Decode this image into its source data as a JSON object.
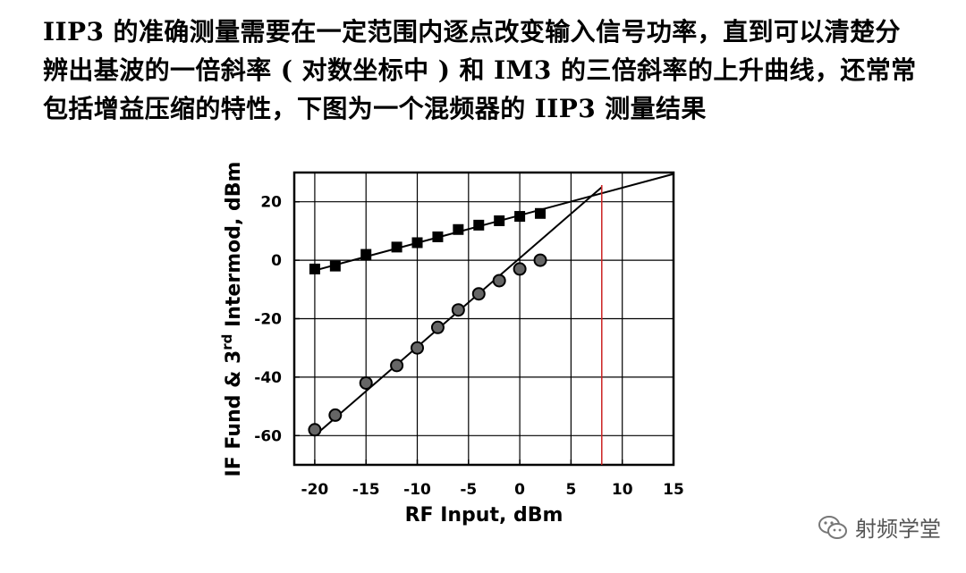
{
  "intro": {
    "lines": [
      "IIP3 的准确测量需要在一定范围内逐点改变输入信号功率，直到可以清楚分",
      "辨出基波的一倍斜率 ( 对数坐标中 ) 和 IM3 的三倍斜率的上升曲线，还常常",
      "包括增益压缩的特性，下图为一个混频器的 IIP3 测量结果"
    ]
  },
  "watermark": {
    "text": "射频学堂",
    "icon": "wechat-icon"
  },
  "colors": {
    "marker_line": "#cc2222",
    "axes": "#000000",
    "grid": "#000000"
  },
  "chart_data": {
    "type": "scatter",
    "xlabel": "RF Input, dBm",
    "ylabel": "IF Fund & 3rd Intermod, dBm",
    "ylabel_parts": [
      "IF Fund & 3",
      "rd",
      " Intermod, dBm"
    ],
    "xlim": [
      -22,
      15
    ],
    "ylim": [
      -70,
      30
    ],
    "xticks": [
      -20,
      -15,
      -10,
      -5,
      0,
      5,
      10,
      15
    ],
    "xtick_labels": [
      "-20",
      "-15",
      "-10",
      "-5",
      "0",
      "5",
      "10",
      "15"
    ],
    "yticks": [
      -60,
      -40,
      -20,
      0,
      20
    ],
    "ytick_labels": [
      "-60",
      "-40",
      "-20",
      "0",
      "20"
    ],
    "grid": true,
    "series": [
      {
        "marker": "square",
        "x": [
          -20,
          -18,
          -15,
          -12,
          -10,
          -8,
          -6,
          -4,
          -2,
          0,
          2
        ],
        "y": [
          -3,
          -2,
          2,
          4.5,
          6,
          8,
          10.5,
          12,
          13.5,
          15,
          16
        ]
      },
      {
        "marker": "circle",
        "x": [
          -20,
          -18,
          -15,
          -12,
          -10,
          -8,
          -6,
          -4,
          -2,
          0,
          2
        ],
        "y": [
          -58,
          -53,
          -42,
          -36,
          -30,
          -23,
          -17,
          -11.5,
          -7,
          -3,
          0
        ]
      }
    ],
    "fit_lines": [
      {
        "from": [
          -20,
          -3.5
        ],
        "to": [
          15,
          29.5
        ]
      },
      {
        "from": [
          -20,
          -60
        ],
        "to": [
          8,
          25
        ]
      }
    ],
    "marker_vline": {
      "x": 8
    }
  }
}
